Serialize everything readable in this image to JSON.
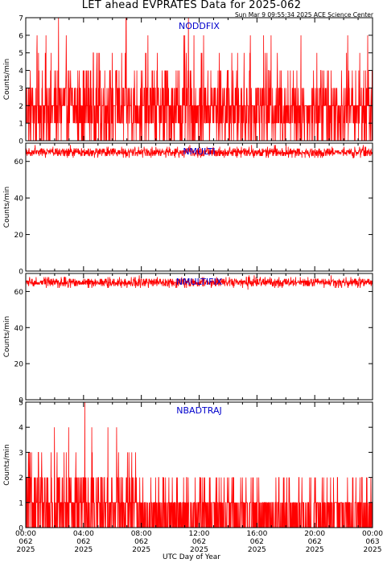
{
  "page": {
    "title": "LET ahead EVPRATES Data for 2025-062",
    "timestamp": "Sun Mar  9 09:55:34 2025 ACE Science Center",
    "xlabel": "UTC Day of Year"
  },
  "colors": {
    "series": "#ff0000",
    "label": "#0000cc",
    "axes": "#000000"
  },
  "chart_data": [
    {
      "type": "line",
      "name": "NODDFIX",
      "ylabel": "Counts/min",
      "ylim": [
        0,
        7
      ],
      "yticks": [
        0,
        1,
        2,
        3,
        4,
        5,
        6,
        7
      ],
      "x_range": [
        "2025-062 00:00",
        "2025-063 00:00"
      ],
      "sampling": "1 min",
      "typical_range": [
        0,
        4
      ],
      "peak_values": [
        6,
        7
      ],
      "description_values": {
        "min": 0,
        "max": 7,
        "typical_mean": 1.8
      }
    },
    {
      "type": "line",
      "name": "NMULTI",
      "ylabel": "Counts/min",
      "ylim": [
        0,
        70
      ],
      "yticks": [
        0,
        20,
        40,
        60
      ],
      "x_range": [
        "2025-062 00:00",
        "2025-063 00:00"
      ],
      "sampling": "1 min",
      "typical_range": [
        63,
        68
      ],
      "description_values": {
        "min": 62,
        "max": 69,
        "typical_mean": 65
      }
    },
    {
      "type": "line",
      "name": "NMULTIFIX",
      "ylabel": "Counts/min",
      "ylim": [
        0,
        70
      ],
      "yticks": [
        0,
        20,
        40,
        60
      ],
      "x_range": [
        "2025-062 00:00",
        "2025-063 00:00"
      ],
      "sampling": "1 min",
      "typical_range": [
        63,
        68
      ],
      "description_values": {
        "min": 62,
        "max": 69,
        "typical_mean": 65
      }
    },
    {
      "type": "line",
      "name": "NBADTRAJ",
      "ylabel": "Counts/min",
      "ylim": [
        0,
        5
      ],
      "yticks": [
        0,
        1,
        2,
        3,
        4,
        5
      ],
      "x_range": [
        "2025-062 00:00",
        "2025-063 00:00"
      ],
      "sampling": "1 min",
      "typical_range": [
        0,
        2
      ],
      "peak_values": [
        4,
        5
      ],
      "description_values": {
        "min": 0,
        "max": 5,
        "typical_mean": 0.8
      }
    }
  ],
  "xaxis": {
    "ticks": [
      {
        "time": "00:00",
        "doy": "062",
        "year": "2025"
      },
      {
        "time": "04:00",
        "doy": "062",
        "year": "2025"
      },
      {
        "time": "08:00",
        "doy": "062",
        "year": "2025"
      },
      {
        "time": "12:00",
        "doy": "062",
        "year": "2025"
      },
      {
        "time": "16:00",
        "doy": "062",
        "year": "2025"
      },
      {
        "time": "20:00",
        "doy": "062",
        "year": "2025"
      },
      {
        "time": "00:00",
        "doy": "063",
        "year": "2025"
      }
    ]
  }
}
